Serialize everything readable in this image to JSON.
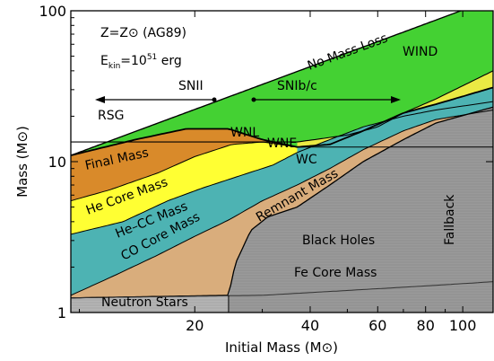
{
  "chart_data": {
    "type": "area",
    "xlabel": "Initial Mass (M⊙)",
    "ylabel": "Mass (M⊙)",
    "xscale": "log",
    "yscale": "log",
    "xlim": [
      9.5,
      120
    ],
    "ylim": [
      1,
      100
    ],
    "xticks": [
      {
        "value": 20,
        "label": "20"
      },
      {
        "value": 40,
        "label": "40"
      },
      {
        "value": 60,
        "label": "60"
      },
      {
        "value": 80,
        "label": "80"
      },
      {
        "value": 100,
        "label": "100"
      }
    ],
    "yticks": [
      {
        "value": 1,
        "label": "1"
      },
      {
        "value": 10,
        "label": "10"
      },
      {
        "value": 100,
        "label": "100"
      }
    ],
    "header": {
      "line1": "Z=Z⊙ (AG89)",
      "line2": "E",
      "line2_sub": "kin",
      "line2_rest": "=10",
      "line2_sup": "51",
      "line2_unit": " erg"
    },
    "colors": {
      "green": "#44d133",
      "yellow_light": "#eaea44",
      "orange": "#d98a2a",
      "yellow": "#ffff33",
      "teal": "#4db3b3",
      "tan": "#d9ad7c",
      "gray": "#9a9a9a",
      "gray_light": "#b5b5b5"
    },
    "boundaries": {
      "no_mass_loss": [
        [
          9.5,
          11
        ],
        [
          120,
          120
        ]
      ],
      "final_mass": [
        [
          9.5,
          11
        ],
        [
          14,
          14
        ],
        [
          19,
          16.5
        ],
        [
          24.5,
          16.5
        ],
        [
          30,
          14
        ],
        [
          37,
          12.5
        ],
        [
          45,
          13
        ],
        [
          55,
          16
        ],
        [
          70,
          21
        ],
        [
          85,
          24
        ],
        [
          120,
          31
        ]
      ],
      "wnl_upper": [
        [
          37,
          13.5
        ],
        [
          50,
          15
        ],
        [
          60,
          17
        ],
        [
          70,
          21
        ],
        [
          85,
          26
        ],
        [
          120,
          40
        ]
      ],
      "he_core": [
        [
          9.5,
          5.5
        ],
        [
          12,
          6.5
        ],
        [
          16,
          8.4
        ],
        [
          20,
          10.8
        ],
        [
          25,
          13
        ],
        [
          30,
          13.5
        ],
        [
          37,
          12.5
        ]
      ],
      "he_cc": [
        [
          9.5,
          3.3
        ],
        [
          13,
          4
        ],
        [
          17,
          5.5
        ],
        [
          21,
          6.7
        ],
        [
          26,
          8
        ],
        [
          32,
          9.5
        ],
        [
          37,
          11.5
        ],
        [
          45,
          14
        ],
        [
          55,
          17
        ],
        [
          70,
          20
        ],
        [
          85,
          22
        ],
        [
          120,
          25
        ]
      ],
      "co_core": [
        [
          9.5,
          1.3
        ],
        [
          12,
          1.7
        ],
        [
          16,
          2.4
        ],
        [
          20,
          3.2
        ],
        [
          24.5,
          4.1
        ],
        [
          30,
          5.5
        ],
        [
          37,
          7
        ],
        [
          45,
          9
        ],
        [
          55,
          12
        ],
        [
          70,
          16
        ],
        [
          85,
          19
        ],
        [
          120,
          22
        ]
      ],
      "remnant": [
        [
          9.5,
          1.25
        ],
        [
          24.5,
          1.3
        ],
        [
          25.5,
          2.1
        ],
        [
          28,
          3.5
        ],
        [
          31,
          4.3
        ],
        [
          37,
          5
        ],
        [
          45,
          7
        ],
        [
          55,
          10
        ],
        [
          70,
          14
        ],
        [
          85,
          18
        ],
        [
          120,
          23
        ]
      ],
      "fe_core": [
        [
          9.5,
          1.25
        ],
        [
          30,
          1.3
        ],
        [
          50,
          1.4
        ],
        [
          80,
          1.5
        ],
        [
          120,
          1.6
        ]
      ],
      "fallback_x": 24.5
    },
    "labels": {
      "no_mass_loss": "No Mass Loss",
      "wind": "WIND",
      "snii": "SNII",
      "snibc": "SNIb/c",
      "rsg": "RSG",
      "wnl": "WNL",
      "wne": "WNE",
      "wc": "WC",
      "final_mass": "Final Mass",
      "he_core_mass": "He Core Mass",
      "he_cc_mass": "He–CC Mass",
      "co_core_mass": "CO Core Mass",
      "remnant_mass": "Remnant Mass",
      "black_holes": "Black Holes",
      "fe_core_mass": "Fe Core Mass",
      "neutron_stars": "Neutron Stars",
      "fallback": "Fallback"
    }
  }
}
